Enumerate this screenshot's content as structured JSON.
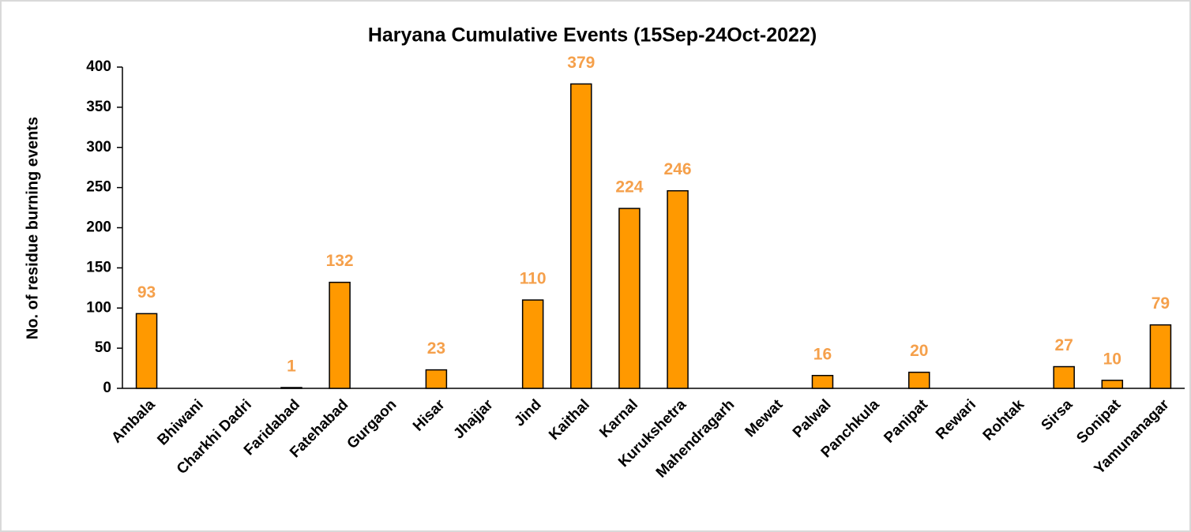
{
  "chart_data": {
    "type": "bar",
    "title": "Haryana Cumulative Events (15Sep-24Oct-2022)",
    "y_label": "No. of residue burning events",
    "categories": [
      "Ambala",
      "Bhiwani",
      "Charkhi Dadri",
      "Faridabad",
      "Fatehabad",
      "Gurgaon",
      "Hisar",
      "Jhajjar",
      "Jind",
      "Kaithal",
      "Karnal",
      "Kurukshetra",
      "Mahendragarh",
      "Mewat",
      "Palwal",
      "Panchkula",
      "Panipat",
      "Rewari",
      "Rohtak",
      "Sirsa",
      "Sonipat",
      "Yamunanagar"
    ],
    "values": [
      93,
      0,
      0,
      1,
      132,
      0,
      23,
      0,
      110,
      379,
      224,
      246,
      0,
      0,
      16,
      0,
      20,
      0,
      0,
      27,
      10,
      79
    ],
    "color": "#ff9900",
    "label_color": "#f5a04b",
    "ylim": [
      0,
      400
    ],
    "yticks": [
      0,
      50,
      100,
      150,
      200,
      250,
      300,
      350,
      400
    ],
    "grid": false
  }
}
